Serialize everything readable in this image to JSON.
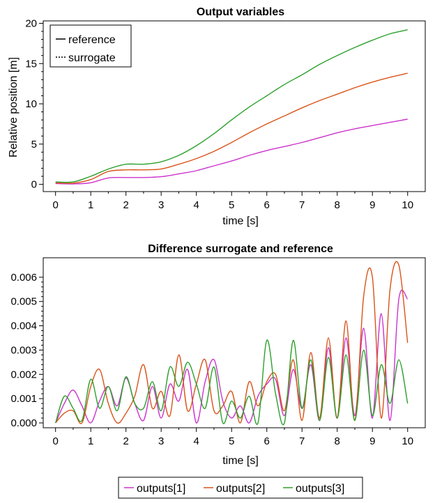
{
  "chart_data": [
    {
      "type": "line",
      "title": "Output variables",
      "xlabel": "time [s]",
      "ylabel": "Relative position [m]",
      "xlim": [
        -0.35,
        10.5
      ],
      "ylim": [
        -0.9,
        20.3
      ],
      "xticks": [
        "0",
        "1",
        "2",
        "3",
        "4",
        "5",
        "6",
        "7",
        "8",
        "9",
        "10"
      ],
      "yticks": [
        "0",
        "5",
        "10",
        "15",
        "20"
      ],
      "legend": {
        "placement": "top-left",
        "entries": [
          "reference",
          "surrogate"
        ]
      },
      "series": [
        {
          "name": "outputs[1]",
          "color": "#cc33cc",
          "x": [
            0,
            0.5,
            1,
            1.5,
            2,
            2.5,
            3,
            3.5,
            4,
            4.5,
            5,
            5.5,
            6,
            6.5,
            7,
            7.5,
            8,
            8.5,
            9,
            9.5,
            10
          ],
          "y": [
            0.1,
            0.05,
            0.2,
            0.8,
            0.85,
            0.85,
            0.95,
            1.3,
            1.7,
            2.3,
            2.9,
            3.6,
            4.2,
            4.7,
            5.2,
            5.8,
            6.4,
            6.9,
            7.3,
            7.7,
            8.1
          ]
        },
        {
          "name": "outputs[2]",
          "color": "#d95319",
          "x": [
            0,
            0.5,
            1,
            1.5,
            2,
            2.5,
            3,
            3.5,
            4,
            4.5,
            5,
            5.5,
            6,
            6.5,
            7,
            7.5,
            8,
            8.5,
            9,
            9.5,
            10
          ],
          "y": [
            0.2,
            0.15,
            0.6,
            1.6,
            1.8,
            1.8,
            1.9,
            2.5,
            3.2,
            4.1,
            5.2,
            6.4,
            7.5,
            8.5,
            9.5,
            10.4,
            11.2,
            12.0,
            12.7,
            13.3,
            13.8
          ]
        },
        {
          "name": "outputs[3]",
          "color": "#2ca02c",
          "x": [
            0,
            0.5,
            1,
            1.5,
            2,
            2.5,
            3,
            3.5,
            4,
            4.5,
            5,
            5.5,
            6,
            6.5,
            7,
            7.5,
            8,
            8.5,
            9,
            9.5,
            10
          ],
          "y": [
            0.3,
            0.3,
            1.0,
            1.9,
            2.5,
            2.5,
            2.8,
            3.6,
            4.8,
            6.3,
            8.0,
            9.6,
            11.0,
            12.4,
            13.6,
            14.9,
            16.0,
            17.0,
            17.9,
            18.7,
            19.2
          ]
        }
      ]
    },
    {
      "type": "line",
      "title": "Difference surrogate and reference",
      "xlabel": "time [s]",
      "ylabel": "",
      "xlim": [
        -0.35,
        10.5
      ],
      "ylim": [
        -0.0002,
        0.0068
      ],
      "xticks": [
        "0",
        "1",
        "2",
        "3",
        "4",
        "5",
        "6",
        "7",
        "8",
        "9",
        "10"
      ],
      "yticks": [
        "0.000",
        "0.001",
        "0.002",
        "0.003",
        "0.004",
        "0.005",
        "0.006"
      ],
      "legend": {
        "placement": "bottom-center",
        "entries": [
          "outputs[1]",
          "outputs[2]",
          "outputs[3]"
        ]
      },
      "series": [
        {
          "name": "outputs[1]",
          "color": "#cc33cc",
          "x": [
            0,
            0.25,
            0.5,
            0.75,
            1.0,
            1.25,
            1.5,
            1.75,
            2.0,
            2.25,
            2.5,
            2.75,
            3.0,
            3.25,
            3.5,
            3.75,
            4.0,
            4.25,
            4.5,
            4.75,
            5.0,
            5.25,
            5.5,
            5.75,
            6.0,
            6.25,
            6.5,
            6.75,
            7.0,
            7.25,
            7.5,
            7.75,
            8.0,
            8.25,
            8.5,
            8.75,
            9.0,
            9.25,
            9.5,
            9.75,
            10.0
          ],
          "y": [
            0,
            0.0008,
            0.00135,
            0.0007,
            0,
            0.0009,
            0.0015,
            0.0007,
            0.00185,
            0.0008,
            0.0001,
            0.0015,
            0.0002,
            0.0016,
            0.0009,
            0.0022,
            0,
            0.0017,
            0.0026,
            0.0009,
            0.0002,
            0.0007,
            0,
            0.0011,
            0.0016,
            0.0018,
            0.0003,
            0.0022,
            0.0006,
            0.0024,
            0.0001,
            0.0031,
            0.0002,
            0.0035,
            0.0003,
            0.0039,
            0.0002,
            0.0045,
            0.0001,
            0.0051,
            0.0051
          ]
        },
        {
          "name": "outputs[2]",
          "color": "#d95319",
          "x": [
            0,
            0.25,
            0.5,
            0.75,
            1.0,
            1.25,
            1.5,
            1.75,
            2.0,
            2.25,
            2.5,
            2.75,
            3.0,
            3.25,
            3.5,
            3.75,
            4.0,
            4.25,
            4.5,
            4.75,
            5.0,
            5.25,
            5.5,
            5.75,
            6.0,
            6.25,
            6.5,
            6.75,
            7.0,
            7.25,
            7.5,
            7.75,
            8.0,
            8.25,
            8.5,
            8.75,
            9.0,
            9.25,
            9.5,
            9.75,
            10.0
          ],
          "y": [
            0,
            0.0004,
            0.0005,
            0,
            0.0015,
            0.0022,
            0.0008,
            0,
            0.0004,
            0.0011,
            0.0024,
            0.0006,
            0.0013,
            0.0003,
            0.0028,
            0.0005,
            0.0016,
            0.0026,
            0.0005,
            0.0007,
            0.0013,
            0,
            0.0017,
            0.0007,
            0.0017,
            0.002,
            0.0005,
            0.0026,
            0.0001,
            0.0029,
            0.0002,
            0.0035,
            0.0002,
            0.0042,
            0.0001,
            0.0052,
            0.006,
            0.0002,
            0.0055,
            0.0065,
            0.0033
          ]
        },
        {
          "name": "outputs[3]",
          "color": "#2ca02c",
          "x": [
            0,
            0.25,
            0.5,
            0.75,
            1.0,
            1.25,
            1.5,
            1.75,
            2.0,
            2.25,
            2.5,
            2.75,
            3.0,
            3.25,
            3.5,
            3.75,
            4.0,
            4.25,
            4.5,
            4.75,
            5.0,
            5.25,
            5.5,
            5.75,
            6.0,
            6.25,
            6.5,
            6.75,
            7.0,
            7.25,
            7.5,
            7.75,
            8.0,
            8.25,
            8.5,
            8.75,
            9.0,
            9.25,
            9.5,
            9.75,
            10.0
          ],
          "y": [
            0,
            0.0011,
            0.0006,
            0.0001,
            0.0018,
            0.0006,
            0.0015,
            0.0005,
            0.0019,
            0.0008,
            0.0006,
            0.0017,
            0.0005,
            0.0023,
            0.0015,
            0.0025,
            0.0016,
            0.0006,
            0.0023,
            0,
            0.0009,
            0.0002,
            0.0011,
            0,
            0.0034,
            0.0012,
            0,
            0.0034,
            0.0006,
            0.0026,
            0.0001,
            0.0027,
            0.0002,
            0.0028,
            0.0001,
            0.003,
            0.0003,
            0.0024,
            0.0008,
            0.0026,
            0.0008
          ]
        }
      ]
    }
  ]
}
